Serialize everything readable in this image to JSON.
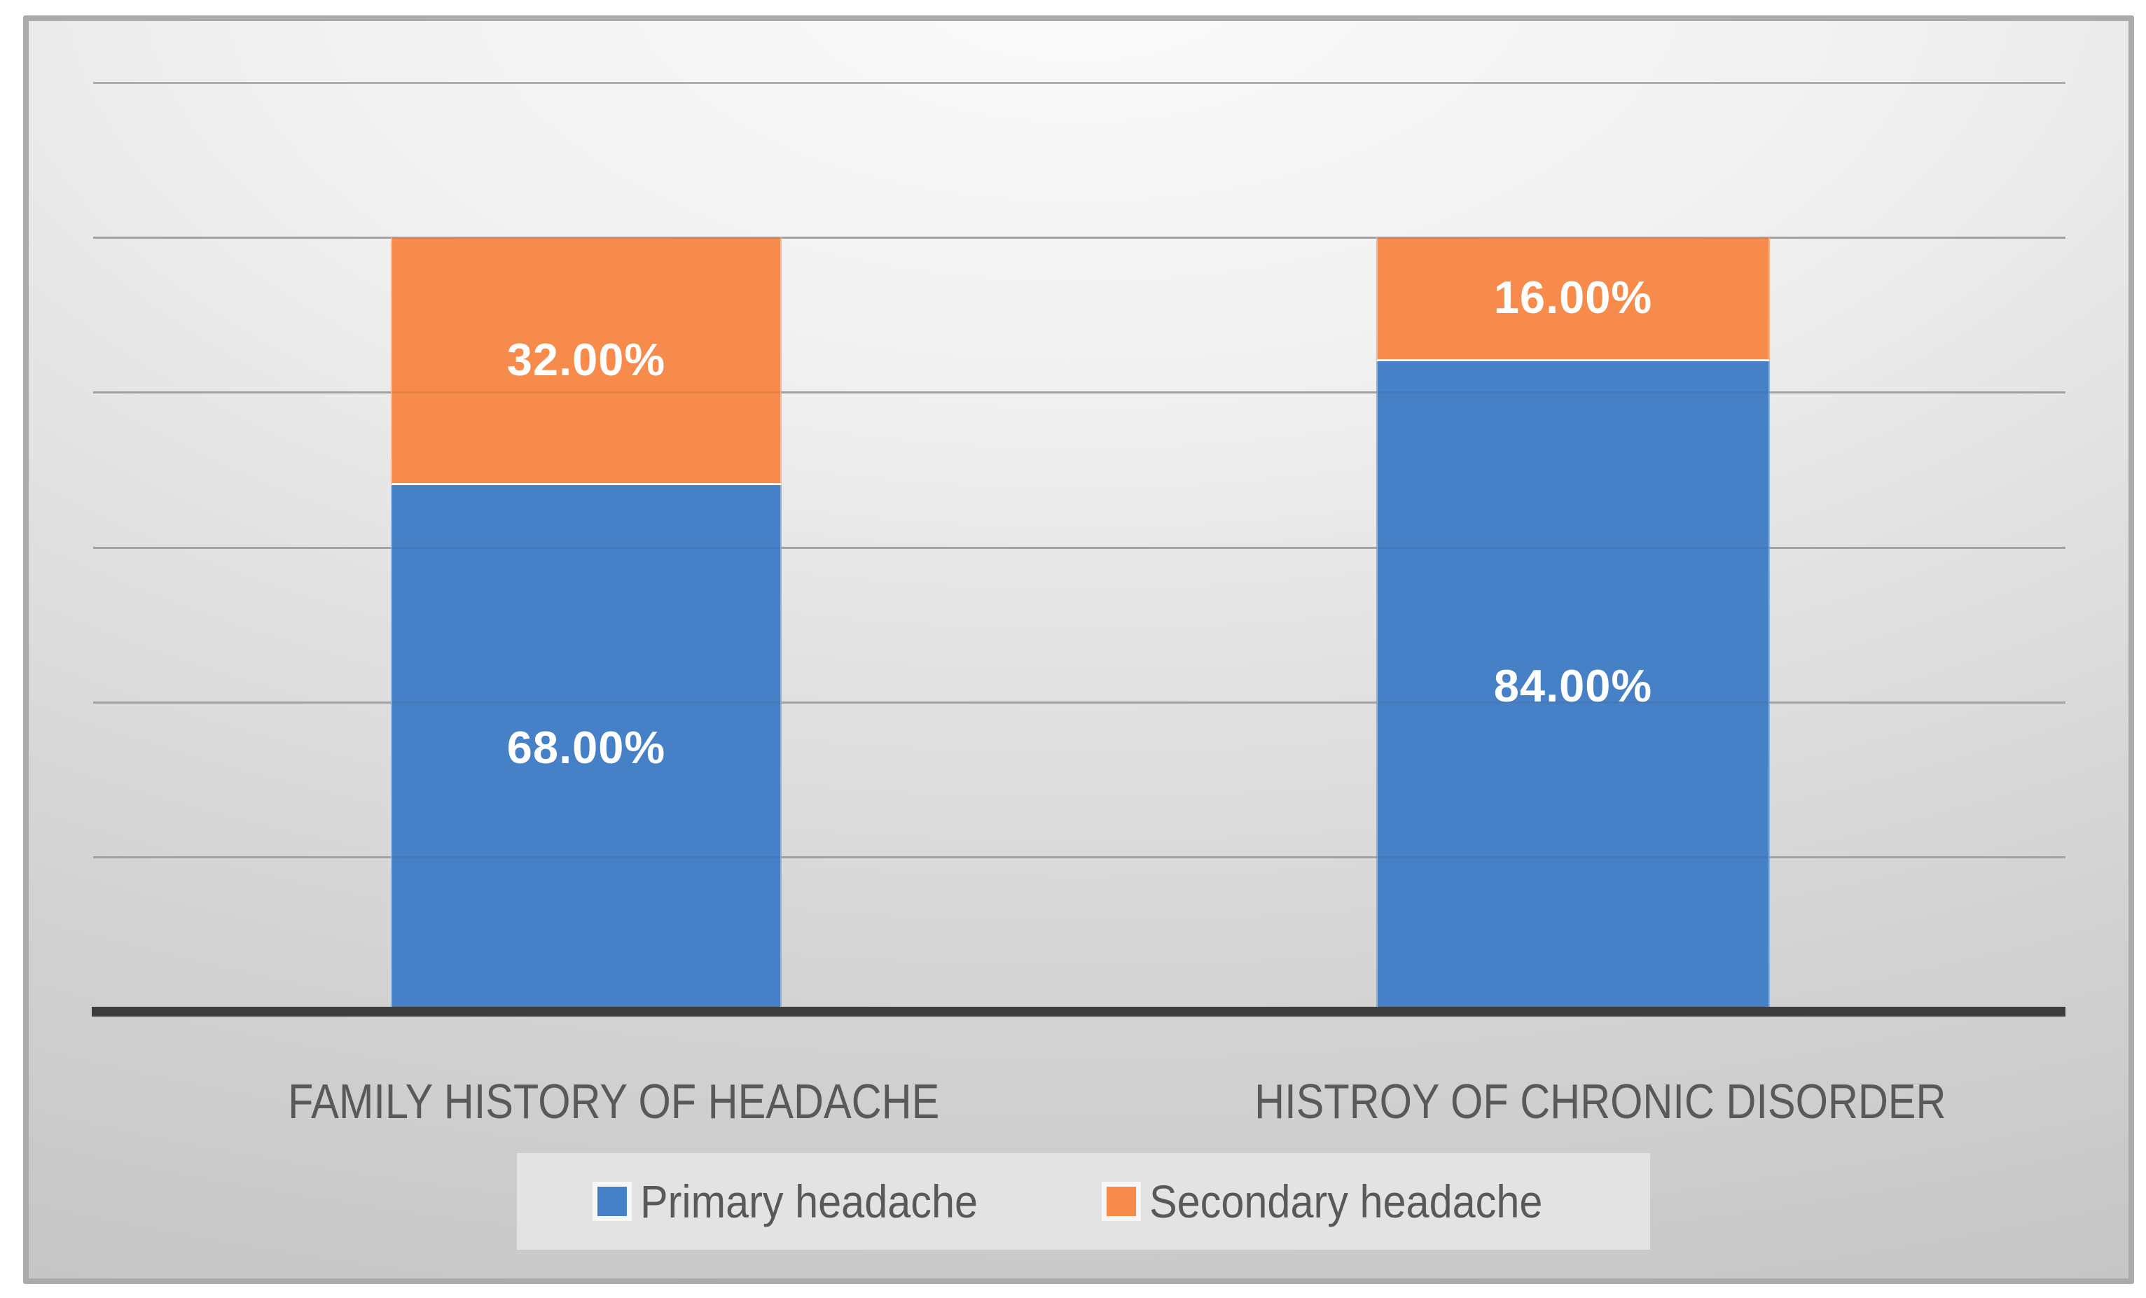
{
  "chart_data": {
    "type": "bar",
    "stacked": true,
    "orientation": "vertical",
    "title": "",
    "xlabel": "",
    "ylabel": "",
    "categories": [
      "FAMILY HISTORY OF HEADACHE",
      "HISTROY OF CHRONIC DISORDER"
    ],
    "series": [
      {
        "name": "Primary headache",
        "color": "#4680C6",
        "values": [
          68,
          84
        ],
        "labels": [
          "68.00%",
          "84.00%"
        ]
      },
      {
        "name": "Secondary headache",
        "color": "#F78B4C",
        "values": [
          32,
          16
        ],
        "labels": [
          "32.00%",
          "16.00%"
        ]
      }
    ],
    "value_axis": {
      "min": 0,
      "max": 120,
      "step": 20,
      "tick_labels_visible": false
    },
    "grid": true,
    "legend_position": "bottom",
    "data_label_color": "#FFFFFF",
    "axis_text_color": "#595959",
    "axis_line_color": "#3D3D3D",
    "gridline_color": "#AFAFAF",
    "plot_background": "gradient-gray",
    "frame_border_color": "#ABABAB",
    "legend_panel_color": "#E3E3E3"
  }
}
